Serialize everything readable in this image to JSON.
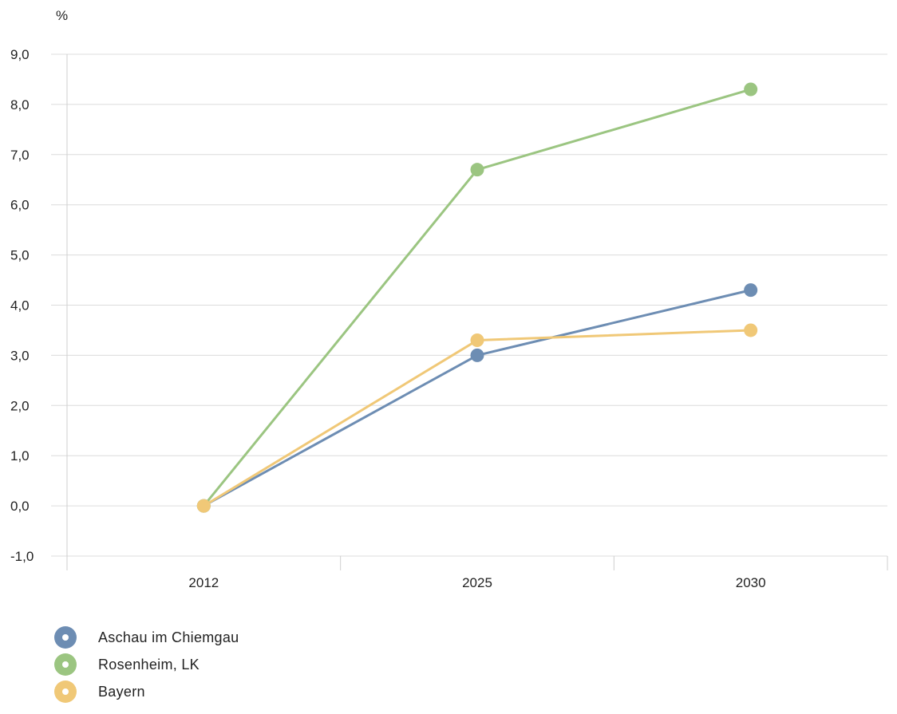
{
  "chart_data": {
    "type": "line",
    "ylabel": "%",
    "ylim": [
      -1,
      9
    ],
    "yticks": [
      -1,
      0,
      1,
      2,
      3,
      4,
      5,
      6,
      7,
      8,
      9
    ],
    "ytick_labels": [
      "-1,0",
      "0,0",
      "1,0",
      "2,0",
      "3,0",
      "4,0",
      "5,0",
      "6,0",
      "7,0",
      "8,0",
      "9,0"
    ],
    "categories": [
      "2012",
      "2025",
      "2030"
    ],
    "grid": true,
    "legend_placement": "bottom-left",
    "series": [
      {
        "name": "Aschau im Chiemgau",
        "color": "#6d8db3",
        "values": [
          0.0,
          3.0,
          4.3
        ]
      },
      {
        "name": "Rosenheim, LK",
        "color": "#9bc581",
        "values": [
          0.0,
          6.7,
          8.3
        ]
      },
      {
        "name": "Bayern",
        "color": "#f0c877",
        "values": [
          0.0,
          3.3,
          3.5
        ]
      }
    ]
  }
}
